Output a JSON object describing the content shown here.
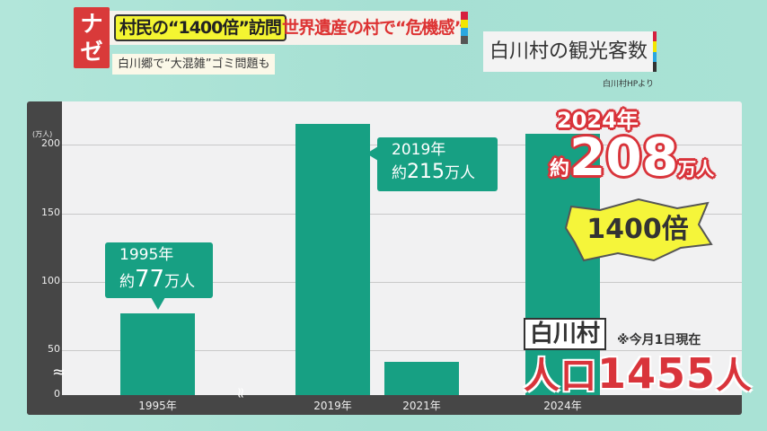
{
  "header": {
    "badge": "ナゼ",
    "headline_highlight": "村民の“1400倍”訪問",
    "headline_rest": "世界遺産の村で“危機感”",
    "subheadline": "白川郷で“大混雑”ゴミ問題も",
    "color_bar": [
      "#d6203f",
      "#f2e500",
      "#2aa7e0",
      "#555555"
    ]
  },
  "title_box": {
    "title": "白川村の観光客数",
    "source": "白川村HPより"
  },
  "chart_data": {
    "type": "bar",
    "ylabel": "(万人)",
    "categories": [
      "1995年",
      "2019年",
      "2021年",
      "2024年"
    ],
    "values": [
      77,
      215,
      37,
      208
    ],
    "yticks": [
      "0",
      "50",
      "100",
      "150",
      "200"
    ],
    "ylim": [
      0,
      220
    ],
    "axis_break": true,
    "break_marks": [
      "≈",
      "≈"
    ],
    "grid": true,
    "bar_color": "#17a083"
  },
  "callouts": {
    "c1995": {
      "year": "1995年",
      "prefix": "約",
      "value": "77",
      "unit": "万人"
    },
    "c2019": {
      "year": "2019年",
      "prefix": "約",
      "value": "215",
      "unit": "万人"
    },
    "c2024": {
      "year": "2024年",
      "prefix": "約",
      "value": "208",
      "unit": "万人"
    },
    "ratio": "1400倍"
  },
  "population": {
    "village": "白川村",
    "note": "※今月1日現在",
    "label": "人口",
    "value": "1455",
    "unit": "人"
  }
}
